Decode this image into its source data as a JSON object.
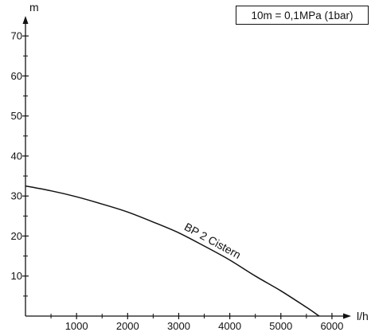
{
  "chart_data": {
    "type": "line",
    "xlabel": "l/h",
    "ylabel": "m",
    "xlim": [
      0,
      6500
    ],
    "ylim": [
      0,
      75
    ],
    "x_ticks": [
      1000,
      2000,
      3000,
      4000,
      5000,
      6000
    ],
    "y_ticks": [
      10,
      20,
      30,
      40,
      50,
      60,
      70
    ],
    "x_minor_step": 500,
    "y_minor_step": 5,
    "grid": false,
    "annotation": "10m = 0,1MPa (1bar)",
    "series": [
      {
        "name": "BP 2 Cistern",
        "x": [
          0,
          500,
          1000,
          1500,
          2000,
          2500,
          3000,
          3500,
          4000,
          4500,
          5000,
          5500,
          5750
        ],
        "y": [
          32.5,
          31.3,
          29.8,
          28.0,
          26.0,
          23.5,
          20.8,
          17.5,
          14.0,
          10.0,
          6.3,
          2.2,
          0
        ]
      }
    ],
    "colors": {
      "line": "#111111",
      "background": "#ffffff"
    }
  }
}
